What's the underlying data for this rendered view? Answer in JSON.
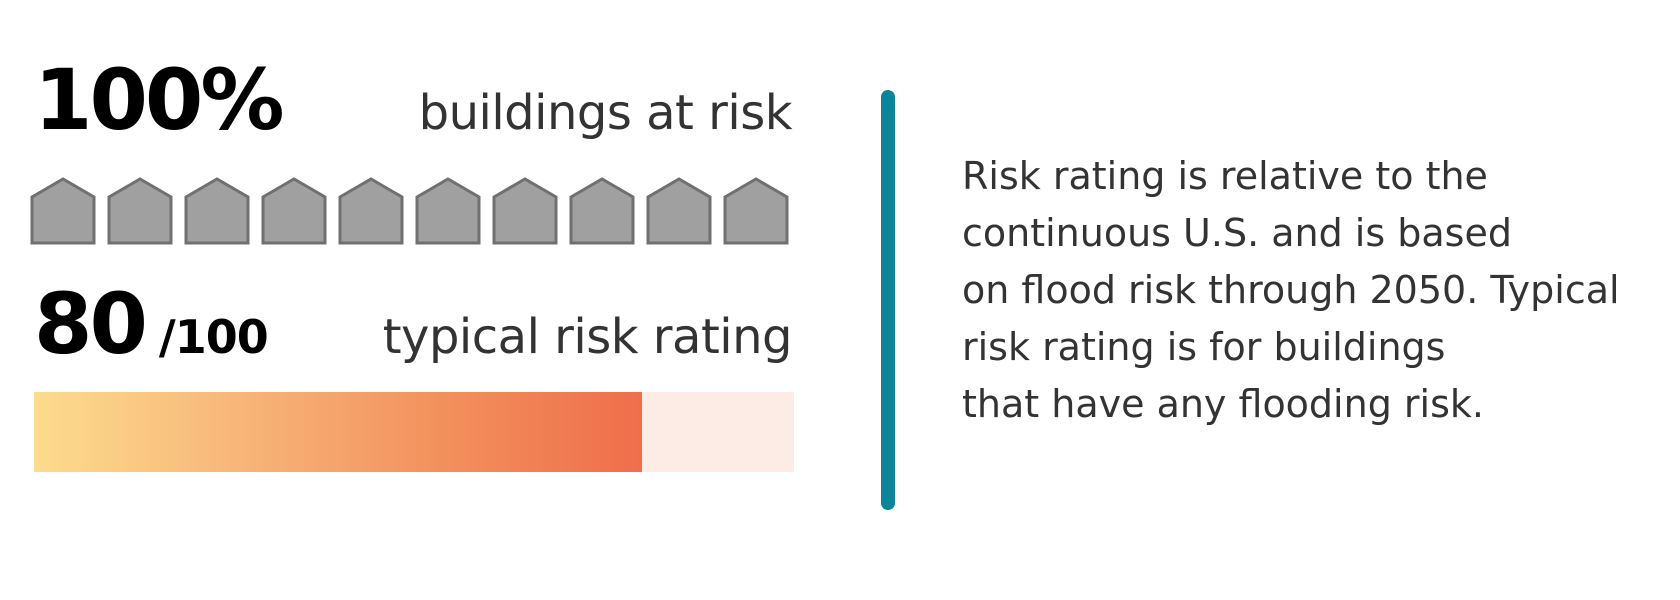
{
  "buildings": {
    "value": "100%",
    "label": "buildings at risk",
    "houses_total": 10,
    "houses_at_risk": 10,
    "house_fill_color": "#a0a0a0",
    "house_stroke_color": "#707070",
    "house_icon": "house-icon"
  },
  "rating": {
    "value": "80",
    "denominator": "/100",
    "label": "typical risk rating",
    "fraction": 0.8,
    "bar_start_color": "#fcdc8e",
    "bar_end_color": "#ef6e4b",
    "bar_track_color": "#fdece6"
  },
  "divider_color": "#0a8599",
  "note": {
    "lines": [
      "Risk rating is relative to the",
      "continuous U.S. and is based",
      "on flood risk through 2050. Typical",
      "risk rating is for buildings",
      "that have any flooding risk."
    ]
  }
}
